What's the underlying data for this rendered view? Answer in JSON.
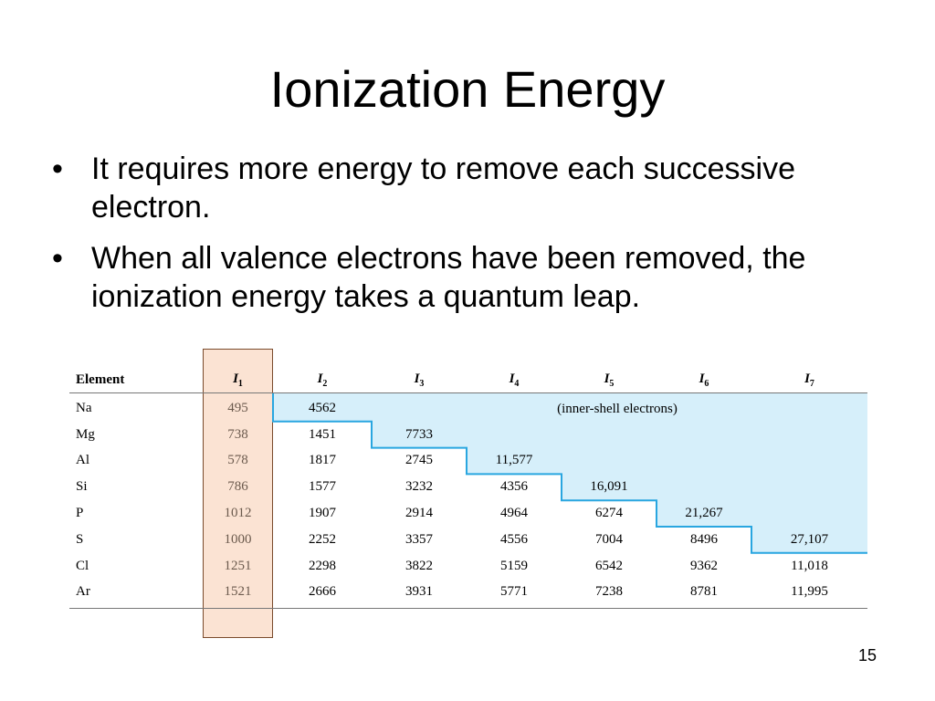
{
  "slide": {
    "title": "Ionization Energy",
    "bullets": [
      "It requires more energy to remove each successive electron.",
      "When all valence electrons have been removed, the ionization energy takes a quantum leap."
    ],
    "page_number": "15"
  },
  "table": {
    "header": {
      "element": "Element",
      "columns": [
        {
          "symbol": "I",
          "sub": "1"
        },
        {
          "symbol": "I",
          "sub": "2"
        },
        {
          "symbol": "I",
          "sub": "3"
        },
        {
          "symbol": "I",
          "sub": "4"
        },
        {
          "symbol": "I",
          "sub": "5"
        },
        {
          "symbol": "I",
          "sub": "6"
        },
        {
          "symbol": "I",
          "sub": "7"
        }
      ]
    },
    "inner_shell_note": "(inner-shell electrons)",
    "rows": [
      {
        "element": "Na",
        "values": [
          "495",
          "4562",
          "",
          "",
          "",
          "",
          ""
        ]
      },
      {
        "element": "Mg",
        "values": [
          "738",
          "1451",
          "7733",
          "",
          "",
          "",
          ""
        ]
      },
      {
        "element": "Al",
        "values": [
          "578",
          "1817",
          "2745",
          "11,577",
          "",
          "",
          ""
        ]
      },
      {
        "element": "Si",
        "values": [
          "786",
          "1577",
          "3232",
          "4356",
          "16,091",
          "",
          ""
        ]
      },
      {
        "element": "P",
        "values": [
          "1012",
          "1907",
          "2914",
          "4964",
          "6274",
          "21,267",
          ""
        ]
      },
      {
        "element": "S",
        "values": [
          "1000",
          "2252",
          "3357",
          "4556",
          "7004",
          "8496",
          "27,107"
        ]
      },
      {
        "element": "Cl",
        "values": [
          "1251",
          "2298",
          "3822",
          "5159",
          "6542",
          "9362",
          "11,018"
        ]
      },
      {
        "element": "Ar",
        "values": [
          "1521",
          "2666",
          "3931",
          "5771",
          "7238",
          "8781",
          "11,995"
        ]
      }
    ]
  },
  "colors": {
    "inner_shell_fill": "#d6effa",
    "inner_shell_edge": "#29a6e0",
    "i1_fill": "#fbe3d3",
    "i1_border": "#7a4a2c"
  }
}
